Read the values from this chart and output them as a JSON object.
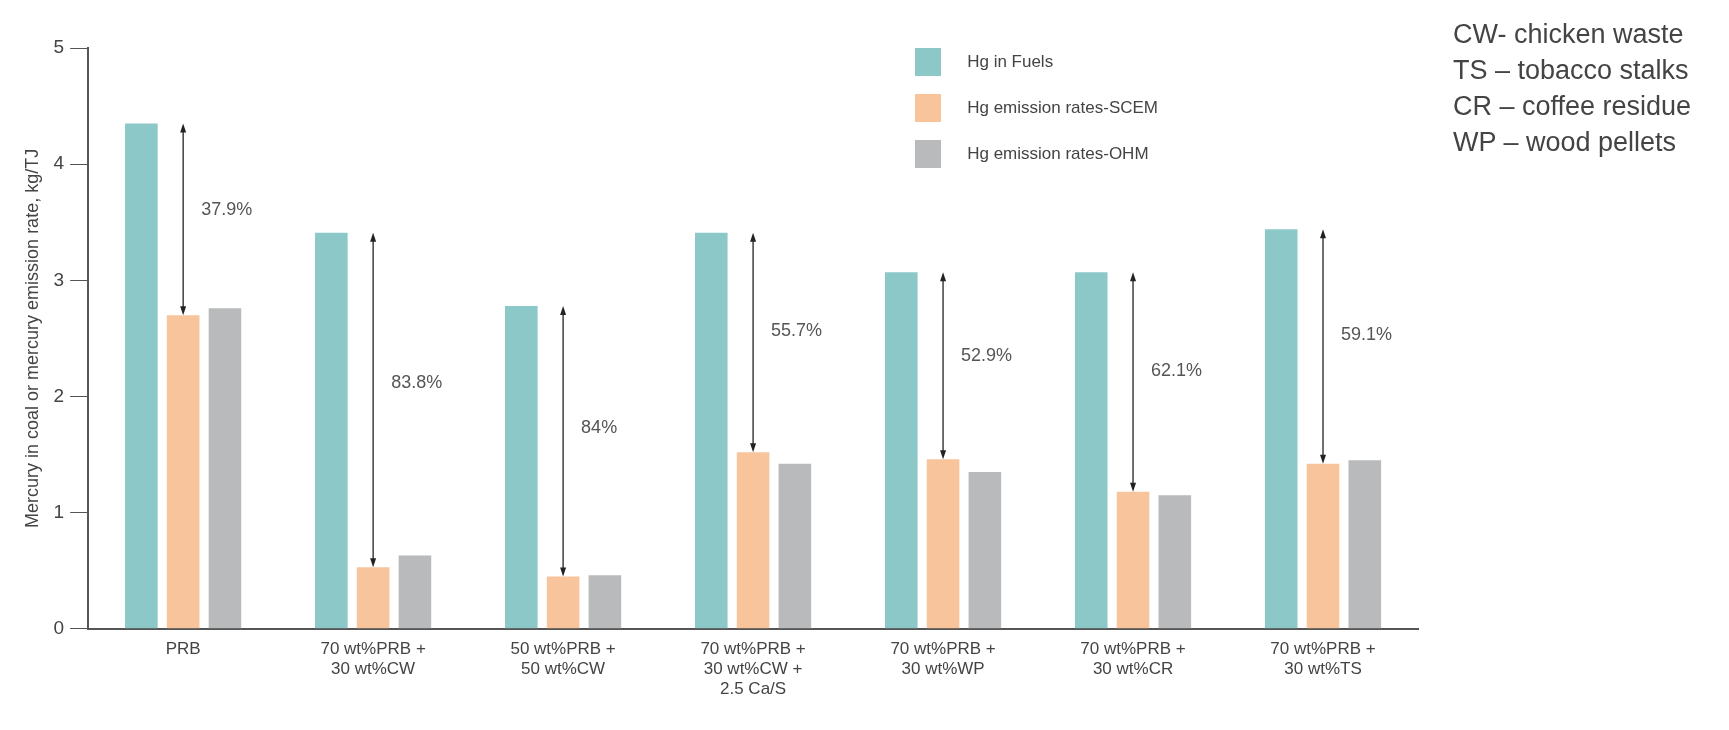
{
  "chart_data": {
    "type": "bar",
    "ylabel": "Mercury in coal or mercury emission rate, kg/TJ",
    "categories": [
      "PRB",
      "70 wt%PRB +\n30 wt%CW",
      "50 wt%PRB +\n50 wt%CW",
      "70 wt%PRB +\n30 wt%CW +\n2.5 Ca/S",
      "70 wt%PRB +\n30 wt%WP",
      "70 wt%PRB +\n30 wt%CR",
      "70 wt%PRB +\n30 wt%TS"
    ],
    "series": [
      {
        "name": "Hg in Fuels",
        "color": "#8cc8c8",
        "values": [
          4.35,
          3.41,
          2.78,
          3.41,
          3.07,
          3.07,
          3.44
        ]
      },
      {
        "name": "Hg emission rates-SCEM",
        "color": "#f8c49c",
        "values": [
          2.7,
          0.53,
          0.45,
          1.52,
          1.46,
          1.18,
          1.42
        ]
      },
      {
        "name": "Hg emission rates-OHM",
        "color": "#b8babc",
        "values": [
          2.76,
          0.63,
          0.46,
          1.42,
          1.35,
          1.15,
          1.45
        ]
      }
    ],
    "ylim": [
      0,
      5
    ],
    "yticks": [
      0,
      1,
      2,
      3,
      4,
      5
    ],
    "grid": false,
    "legend": "top right",
    "annotations": [
      "37.9%",
      "83.8%",
      "84%",
      "55.7%",
      "52.9%",
      "62.1%",
      "59.1%",
      "CW- chicken waste",
      "TS – tobacco stalks",
      "CR – coffee residue",
      "WP – wood pellets"
    ]
  }
}
